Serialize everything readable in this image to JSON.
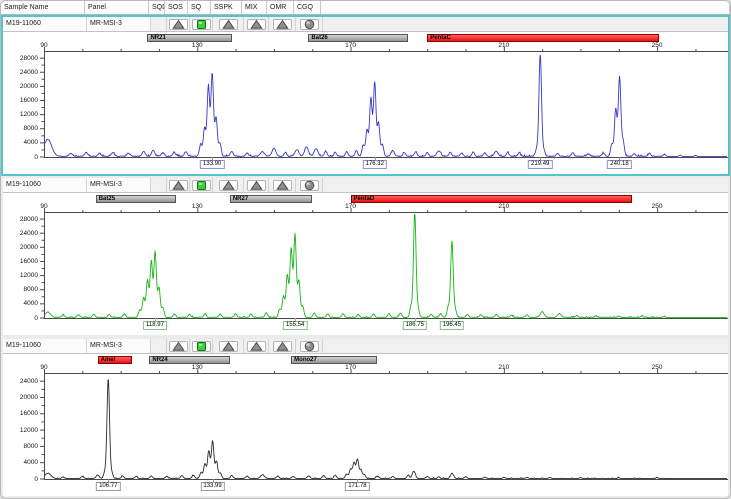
{
  "header": {
    "columns": [
      "Sample Name",
      "Panel",
      "SQD",
      "SOS",
      "SQ",
      "SSPK",
      "MIX",
      "OMR",
      "CGQ"
    ]
  },
  "colors": {
    "selection_border": "#52c6ca",
    "trace_blue": "#3838c8",
    "trace_green": "#17b517",
    "trace_black": "#2a2a2a",
    "marker_gray": "#9a9a9a",
    "marker_red": "#ee1212",
    "flag_green": "#39d039"
  },
  "panels": [
    {
      "sample_name": "M19-11060",
      "panel_name": "MR-MSI-3",
      "selected": true,
      "trace_color": "#3838c8",
      "label_border": "#8e8ed0",
      "flags": [
        {
          "col": "SQD",
          "icon": "none"
        },
        {
          "col": "SOS",
          "icon": "triangle"
        },
        {
          "col": "SQ",
          "icon": "green-square"
        },
        {
          "col": "SSPK",
          "icon": "triangle"
        },
        {
          "col": "MIX",
          "icon": "triangle"
        },
        {
          "col": "OMR",
          "icon": "triangle"
        },
        {
          "col": "CGQ",
          "icon": "sphere"
        }
      ],
      "markers": [
        {
          "name": "NR21",
          "bp_start": 117,
          "bp_end": 139,
          "color": "gray"
        },
        {
          "name": "Bat26",
          "bp_start": 159,
          "bp_end": 185,
          "color": "gray"
        },
        {
          "name": "PentaC",
          "bp_start": 190,
          "bp_end": 250.5,
          "color": "red"
        }
      ],
      "x_axis": {
        "ticks": [
          90,
          130,
          170,
          210,
          250
        ],
        "minor_step": 10,
        "unit": "bp"
      },
      "y_axis": {
        "max": 30000,
        "labels": [
          28000,
          24000,
          20000,
          16000,
          12000,
          8000,
          4000,
          0
        ],
        "unit": "RFU"
      },
      "peaks": [
        {
          "bp": 133.9,
          "text": "133.90"
        },
        {
          "bp": 176.32,
          "text": "176.32"
        },
        {
          "bp": 219.49,
          "text": "219.49"
        },
        {
          "bp": 240.18,
          "text": "240.18"
        }
      ],
      "chart_data": {
        "type": "line",
        "x_unit": "base pairs",
        "y_unit": "RFU",
        "xlim": [
          90,
          250
        ],
        "ylim": [
          0,
          30000
        ],
        "noise": 360,
        "spikes": [
          [
            91,
            4800,
            1.0
          ],
          [
            97,
            900,
            0.4
          ],
          [
            101,
            1100,
            0.4
          ],
          [
            104.5,
            800,
            0.4
          ],
          [
            108,
            1000,
            0.4
          ],
          [
            112,
            900,
            0.4
          ],
          [
            116,
            1400,
            0.4
          ],
          [
            118.5,
            1800,
            0.4
          ],
          [
            121,
            950,
            0.4
          ],
          [
            124,
            1000,
            0.4
          ],
          [
            127,
            1250,
            0.4
          ],
          [
            130.9,
            3500
          ],
          [
            131.9,
            8000
          ],
          [
            132.9,
            20000
          ],
          [
            133.9,
            23500
          ],
          [
            134.9,
            11000
          ],
          [
            135.9,
            3800
          ],
          [
            139,
            1300,
            0.4
          ],
          [
            143,
            950
          ],
          [
            147,
            1400,
            0.5
          ],
          [
            150,
            2300,
            0.5
          ],
          [
            153,
            1100
          ],
          [
            156,
            1900,
            0.5
          ],
          [
            158.5,
            2700,
            0.5
          ],
          [
            161,
            2100,
            0.5
          ],
          [
            163.5,
            1500
          ],
          [
            166,
            1100
          ],
          [
            169,
            1300
          ],
          [
            171.5,
            1700
          ],
          [
            173.3,
            3200
          ],
          [
            174.3,
            7500
          ],
          [
            175.3,
            16500
          ],
          [
            176.3,
            21000
          ],
          [
            177.3,
            9500
          ],
          [
            178.3,
            3300
          ],
          [
            181,
            1600,
            0.4
          ],
          [
            184,
            1100
          ],
          [
            187,
            1300
          ],
          [
            190,
            1050
          ],
          [
            193,
            1500,
            0.5
          ],
          [
            196,
            1100
          ],
          [
            199,
            950
          ],
          [
            202,
            1200
          ],
          [
            205,
            1000
          ],
          [
            208,
            1400,
            0.5
          ],
          [
            211,
            1000
          ],
          [
            214,
            950
          ],
          [
            218.6,
            2200
          ],
          [
            219.5,
            29000
          ],
          [
            220.4,
            1900
          ],
          [
            224,
            850
          ],
          [
            228,
            950
          ],
          [
            232,
            750
          ],
          [
            236,
            950
          ],
          [
            238.2,
            3500
          ],
          [
            239.2,
            13500
          ],
          [
            240.2,
            22500
          ],
          [
            241.1,
            4500
          ],
          [
            244,
            750
          ],
          [
            248,
            850
          ],
          [
            252,
            600
          ],
          [
            256,
            500
          ],
          [
            260,
            420
          ]
        ]
      }
    },
    {
      "sample_name": "M19-11060",
      "panel_name": "MR-MSI-3",
      "selected": false,
      "trace_color": "#17b517",
      "label_border": "#86c486",
      "flags": [
        {
          "col": "SQD",
          "icon": "none"
        },
        {
          "col": "SOS",
          "icon": "triangle"
        },
        {
          "col": "SQ",
          "icon": "green-square"
        },
        {
          "col": "SSPK",
          "icon": "triangle"
        },
        {
          "col": "MIX",
          "icon": "triangle"
        },
        {
          "col": "OMR",
          "icon": "triangle"
        },
        {
          "col": "CGQ",
          "icon": "sphere"
        }
      ],
      "markers": [
        {
          "name": "Bat25",
          "bp_start": 103.5,
          "bp_end": 124.5,
          "color": "gray"
        },
        {
          "name": "NR27",
          "bp_start": 138.5,
          "bp_end": 160,
          "color": "gray"
        },
        {
          "name": "PentaD",
          "bp_start": 170,
          "bp_end": 243.5,
          "color": "red"
        }
      ],
      "x_axis": {
        "ticks": [
          90,
          130,
          170,
          210,
          250
        ],
        "minor_step": 10,
        "unit": "bp"
      },
      "y_axis": {
        "max": 30000,
        "labels": [
          28000,
          24000,
          20000,
          16000,
          12000,
          8000,
          4000,
          0
        ],
        "unit": "RFU"
      },
      "peaks": [
        {
          "bp": 118.97,
          "text": "118.97"
        },
        {
          "bp": 155.54,
          "text": "155.54"
        },
        {
          "bp": 186.75,
          "text": "186.75"
        },
        {
          "bp": 196.45,
          "text": "196.45"
        }
      ],
      "chart_data": {
        "type": "line",
        "x_unit": "base pairs",
        "y_unit": "RFU",
        "xlim": [
          90,
          250
        ],
        "ylim": [
          0,
          30000
        ],
        "noise": 280,
        "spikes": [
          [
            91,
            1500,
            0.7
          ],
          [
            95,
            700
          ],
          [
            99,
            800
          ],
          [
            103,
            900
          ],
          [
            107,
            850
          ],
          [
            111,
            1000
          ],
          [
            115,
            2200
          ],
          [
            116,
            5500
          ],
          [
            117,
            10500
          ],
          [
            118,
            16000
          ],
          [
            119,
            18500
          ],
          [
            120,
            8500
          ],
          [
            121,
            2800
          ],
          [
            124,
            950
          ],
          [
            128,
            850
          ],
          [
            132,
            1000
          ],
          [
            136,
            950
          ],
          [
            140,
            1100
          ],
          [
            144,
            1000
          ],
          [
            148,
            1300
          ],
          [
            151.5,
            2400
          ],
          [
            152.5,
            6000
          ],
          [
            153.5,
            12000
          ],
          [
            154.5,
            19500
          ],
          [
            155.5,
            23500
          ],
          [
            156.5,
            10500
          ],
          [
            157.5,
            3200
          ],
          [
            160.5,
            1200
          ],
          [
            164,
            950
          ],
          [
            168,
            1000
          ],
          [
            172,
            850
          ],
          [
            176,
            950
          ],
          [
            180,
            1050
          ],
          [
            183,
            1250
          ],
          [
            185.8,
            3200
          ],
          [
            186.75,
            29500
          ],
          [
            187.6,
            2600
          ],
          [
            191,
            950
          ],
          [
            193.5,
            1100
          ],
          [
            195.5,
            3000
          ],
          [
            196.45,
            21500
          ],
          [
            197.3,
            2300
          ],
          [
            200.5,
            850
          ],
          [
            204,
            750
          ],
          [
            208,
            850
          ],
          [
            212,
            650
          ],
          [
            216,
            700
          ],
          [
            220,
            1600,
            0.5
          ],
          [
            224.5,
            1050,
            0.5
          ],
          [
            229,
            550
          ],
          [
            234,
            450
          ],
          [
            240,
            420
          ],
          [
            246,
            400
          ],
          [
            252,
            320
          ]
        ]
      }
    },
    {
      "sample_name": "M19-11060",
      "panel_name": "MR-MSI-3",
      "selected": false,
      "trace_color": "#2a2a2a",
      "label_border": "#9a9a9a",
      "flags": [
        {
          "col": "SQD",
          "icon": "none"
        },
        {
          "col": "SOS",
          "icon": "triangle"
        },
        {
          "col": "SQ",
          "icon": "green-square"
        },
        {
          "col": "SSPK",
          "icon": "triangle"
        },
        {
          "col": "MIX",
          "icon": "triangle"
        },
        {
          "col": "OMR",
          "icon": "triangle"
        },
        {
          "col": "CGQ",
          "icon": "sphere"
        }
      ],
      "markers": [
        {
          "name": "Amel",
          "bp_start": 104,
          "bp_end": 113,
          "color": "red"
        },
        {
          "name": "NR24",
          "bp_start": 117.5,
          "bp_end": 138.5,
          "color": "gray"
        },
        {
          "name": "Mono27",
          "bp_start": 154.5,
          "bp_end": 177,
          "color": "gray"
        }
      ],
      "x_axis": {
        "ticks": [
          90,
          130,
          170,
          210,
          250
        ],
        "minor_step": 10,
        "unit": "bp"
      },
      "y_axis": {
        "max": 26000,
        "labels": [
          24000,
          20000,
          16000,
          12000,
          8000,
          4000,
          0
        ],
        "unit": "RFU"
      },
      "peaks": [
        {
          "bp": 106.77,
          "text": "106.77"
        },
        {
          "bp": 133.99,
          "text": "133.99"
        },
        {
          "bp": 171.78,
          "text": "171.78"
        }
      ],
      "chart_data": {
        "type": "line",
        "x_unit": "base pairs",
        "y_unit": "RFU",
        "xlim": [
          90,
          250
        ],
        "ylim": [
          0,
          26000
        ],
        "noise": 190,
        "spikes": [
          [
            91,
            1300,
            0.8
          ],
          [
            95,
            420
          ],
          [
            100,
            520
          ],
          [
            104,
            900,
            0.4
          ],
          [
            105.9,
            1700
          ],
          [
            106.77,
            24500
          ],
          [
            107.65,
            1500
          ],
          [
            110.5,
            620
          ],
          [
            114,
            520
          ],
          [
            118,
            620
          ],
          [
            122,
            520
          ],
          [
            126,
            720
          ],
          [
            129,
            820
          ],
          [
            131,
            1500
          ],
          [
            132,
            3600
          ],
          [
            133,
            6800
          ],
          [
            134,
            9200
          ],
          [
            135,
            4200
          ],
          [
            136,
            1400
          ],
          [
            139,
            720
          ],
          [
            143,
            620
          ],
          [
            147,
            950,
            0.5
          ],
          [
            151,
            620
          ],
          [
            155,
            520
          ],
          [
            159,
            620
          ],
          [
            163,
            720
          ],
          [
            166,
            820
          ],
          [
            169,
            1100
          ],
          [
            170,
            2300
          ],
          [
            170.9,
            3900
          ],
          [
            171.8,
            4700
          ],
          [
            172.7,
            2100
          ],
          [
            173.6,
            950
          ],
          [
            177,
            620
          ],
          [
            181,
            520
          ],
          [
            185,
            720
          ],
          [
            186.5,
            1800,
            0.4
          ],
          [
            190,
            520
          ],
          [
            193,
            430
          ],
          [
            196.5,
            1300,
            0.4
          ],
          [
            200,
            420
          ],
          [
            205,
            360
          ],
          [
            210,
            320
          ],
          [
            216,
            270
          ],
          [
            222,
            260
          ],
          [
            230,
            220
          ],
          [
            240,
            210
          ],
          [
            250,
            200
          ]
        ]
      }
    }
  ]
}
